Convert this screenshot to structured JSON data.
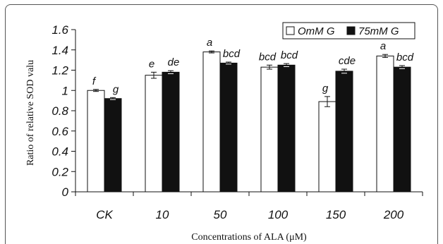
{
  "chart_data": {
    "type": "bar",
    "title": "",
    "xlabel": "Concentrations of ALA (μM)",
    "ylabel": "Ratio of relative SOD valu",
    "ylim": [
      0,
      1.6
    ],
    "yticks": [
      "0",
      "0.2",
      "0.4",
      "0.6",
      "0.8",
      "1",
      "1.2",
      "1.4",
      "1.6"
    ],
    "categories": [
      "CK",
      "10",
      "50",
      "100",
      "150",
      "200"
    ],
    "legend_position": "top-right",
    "series": [
      {
        "name": "OmM G",
        "fill": "#ffffff",
        "values": [
          1.0,
          1.15,
          1.38,
          1.23,
          0.89,
          1.34
        ],
        "errors": [
          0.01,
          0.03,
          0.01,
          0.02,
          0.05,
          0.015
        ],
        "letters": [
          "f",
          "e",
          "a",
          "bcd",
          "g",
          "a"
        ]
      },
      {
        "name": "75mM G",
        "fill": "#111111",
        "values": [
          0.92,
          1.18,
          1.27,
          1.25,
          1.19,
          1.23
        ],
        "errors": [
          0.01,
          0.015,
          0.01,
          0.015,
          0.02,
          0.015
        ],
        "letters": [
          "g",
          "de",
          "bcd",
          "bcd",
          "cde",
          "bcd"
        ]
      }
    ]
  }
}
